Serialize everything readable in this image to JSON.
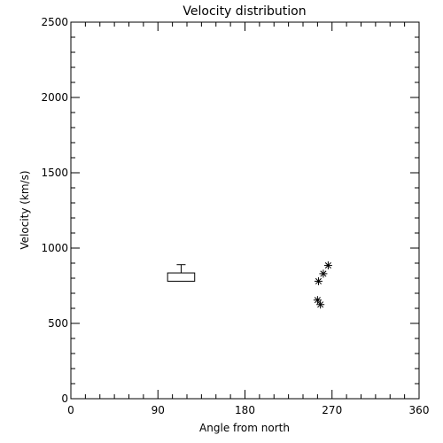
{
  "chart_data": {
    "type": "scatter",
    "title": "Velocity distribution",
    "xlabel": "Angle from north",
    "ylabel": "Velocity (km/s)",
    "xlim": [
      0,
      360
    ],
    "ylim": [
      0,
      2500
    ],
    "x_ticks": [
      "0",
      "90",
      "180",
      "270",
      "360"
    ],
    "y_ticks": [
      "0",
      "500",
      "1000",
      "1500",
      "2000",
      "2500"
    ],
    "grid": false,
    "box": {
      "x_range": [
        100,
        128
      ],
      "y_range": [
        780,
        835
      ],
      "whisker_top": 890
    },
    "points": [
      {
        "x": 255,
        "y": 655
      },
      {
        "x": 258,
        "y": 625
      },
      {
        "x": 256,
        "y": 780
      },
      {
        "x": 261,
        "y": 830
      },
      {
        "x": 266,
        "y": 885
      }
    ]
  },
  "colors": {
    "foreground": "#000000",
    "background": "#ffffff"
  }
}
